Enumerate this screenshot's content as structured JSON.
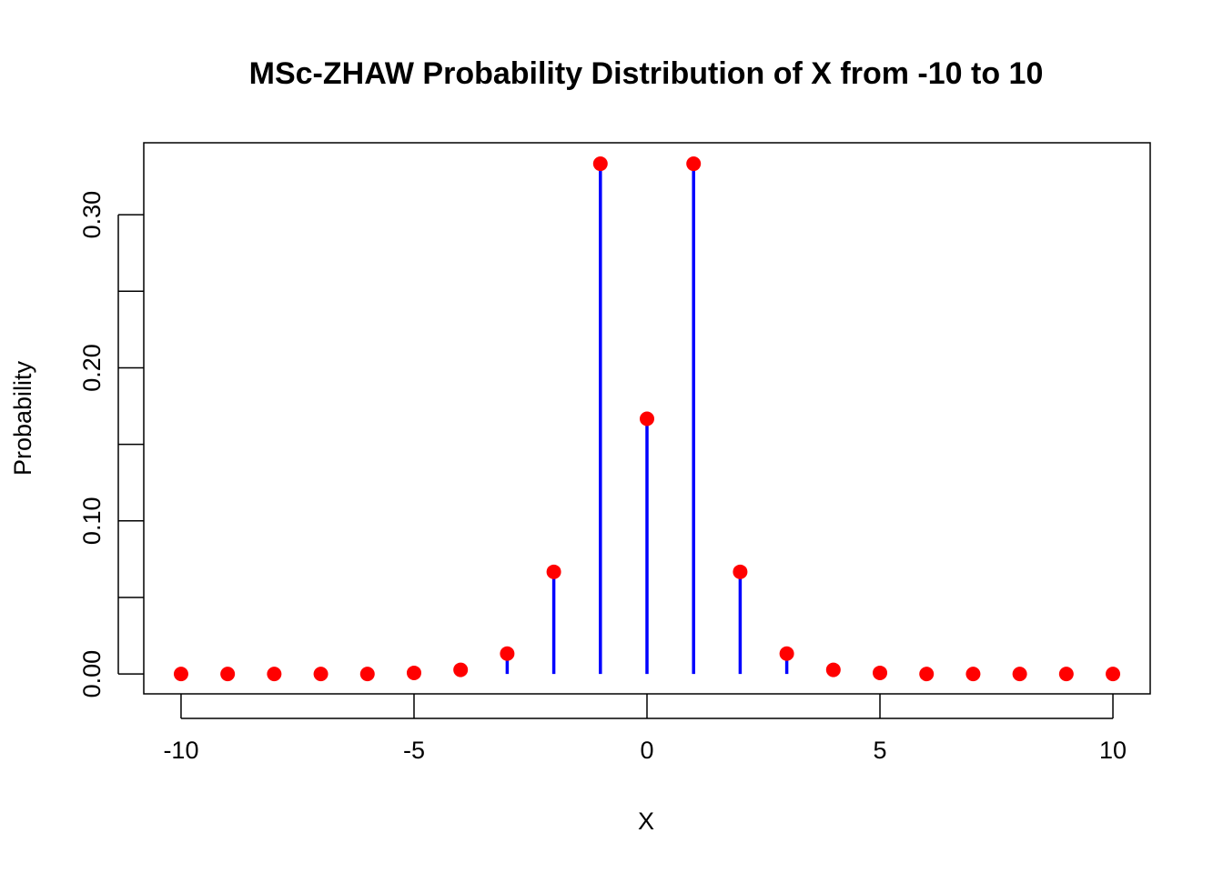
{
  "chart_data": {
    "type": "scatter",
    "title": "MSc-ZHAW Probability Distribution of X from -10 to 10",
    "xlabel": "X",
    "ylabel": "Probability",
    "xlim": [
      -10.8,
      10.8
    ],
    "ylim": [
      -0.013,
      0.347
    ],
    "x_ticks": [
      -10,
      -5,
      0,
      5,
      10
    ],
    "x_tick_labels": [
      "-10",
      "-5",
      "0",
      "5",
      "10"
    ],
    "y_ticks": [
      0.0,
      0.05,
      0.1,
      0.15,
      0.2,
      0.25,
      0.3
    ],
    "y_tick_labels": [
      "0.00",
      "",
      "0.10",
      "",
      "0.20",
      "",
      "0.30"
    ],
    "grid": false,
    "legend": "none",
    "series": [
      {
        "x": [
          -10,
          -9,
          -8,
          -7,
          -6,
          -5,
          -4,
          -3,
          -2,
          -1,
          0,
          1,
          2,
          3,
          4,
          5,
          6,
          7,
          8,
          9,
          10
        ],
        "values": [
          0.0,
          0.0,
          0.0,
          0.0,
          0.0,
          0.0007,
          0.0027,
          0.0133,
          0.0667,
          0.3333,
          0.1667,
          0.3333,
          0.0667,
          0.0133,
          0.0027,
          0.0007,
          0.0,
          0.0,
          0.0,
          0.0,
          0.0
        ]
      }
    ],
    "colors": {
      "stem": "#0000ff",
      "point": "#ff0000",
      "axis": "#000000"
    }
  }
}
